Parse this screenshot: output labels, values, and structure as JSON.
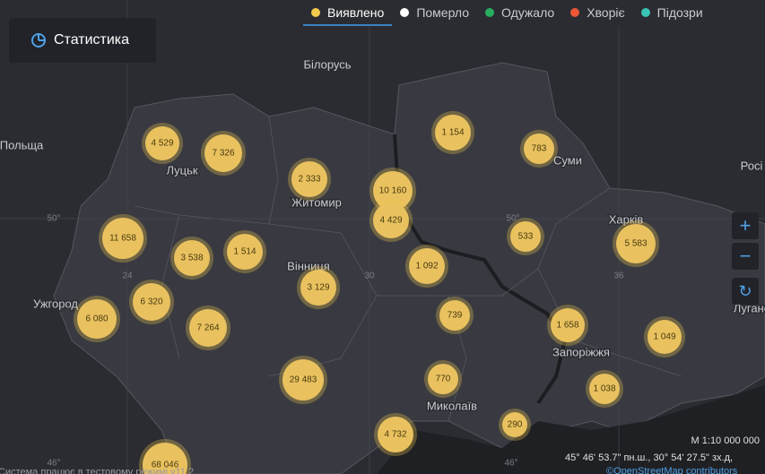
{
  "tabs": [
    {
      "label": "Виявлено",
      "color": "#f2c94c"
    },
    {
      "label": "Померло",
      "color": "#ffffff"
    },
    {
      "label": "Одужало",
      "color": "#27ae60"
    },
    {
      "label": "Хворіє",
      "color": "#eb5737"
    },
    {
      "label": "Підозри",
      "color": "#38c3b4"
    }
  ],
  "stats_button": "Статистика",
  "places": [
    "Білорусь",
    "Польща",
    "Росі",
    "Луцьк",
    "Житомир",
    "Суми",
    "Харків",
    "Вінниця",
    "Ужгород",
    "Запоріжжя",
    "Миколаїв",
    "Луганс"
  ],
  "graticule": [
    "50°",
    "24",
    "30",
    "50°",
    "36",
    "46°",
    "46°"
  ],
  "clusters": [
    "4 529",
    "7 326",
    "2 333",
    "10 160",
    "4 429",
    "1 154",
    "783",
    "11 658",
    "3 538",
    "1 514",
    "1 092",
    "533",
    "5 583",
    "3 129",
    "6 320",
    "6 080",
    "7 264",
    "739",
    "1 658",
    "1 049",
    "29 483",
    "770",
    "1 038",
    "290",
    "4 732",
    "68 046"
  ],
  "footer": {
    "scale": "M 1:10 000 000",
    "coords": "45° 46' 53.7\" пн.ш., 30° 54' 27.5\" зх.д,",
    "attribution": "©OpenStreetMap contributors",
    "notice": "Система працює в тестовому режимі v11.2"
  }
}
